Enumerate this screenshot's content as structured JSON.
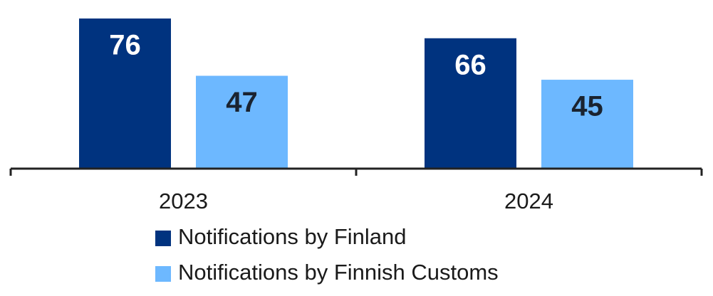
{
  "chart_data": {
    "type": "bar",
    "categories": [
      "2023",
      "2024"
    ],
    "series": [
      {
        "name": "Notifications by Finland",
        "color": "#00337f",
        "values": [
          76,
          66
        ]
      },
      {
        "name": "Notifications by Finnish Customs",
        "color": "#6db8ff",
        "values": [
          47,
          45
        ]
      }
    ]
  }
}
